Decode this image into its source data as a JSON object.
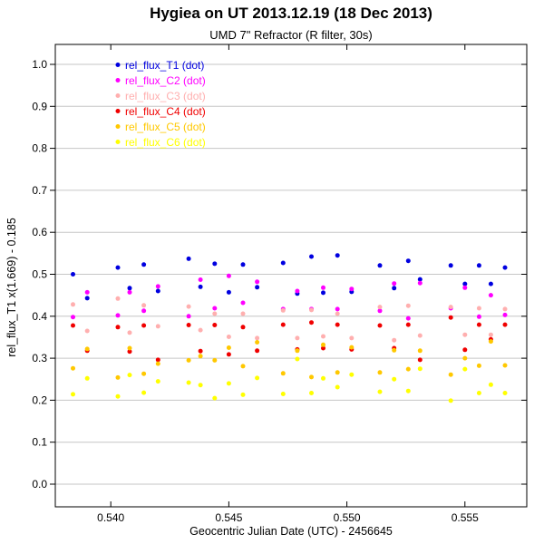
{
  "title": "Hygiea on UT 2013.12.19 (18 Dec 2013)",
  "subtitle": "UMD 7\" Refractor (R filter, 30s)",
  "chart_data": {
    "type": "scatter",
    "title": "Hygiea on UT 2013.12.19 (18 Dec 2013)",
    "subtitle": "UMD 7\" Refractor (R filter, 30s)",
    "xlabel": "Geocentric Julian Date (UTC) - 2456645",
    "ylabel": "rel_flux_T1 x(1.669) - 0.185",
    "xlim": [
      0.53765,
      0.55762
    ],
    "ylim": [
      -0.054,
      1.0475
    ],
    "x_ticks": [
      0.54,
      0.545,
      0.55,
      0.555
    ],
    "x_tick_labels": [
      "0.540",
      "0.545",
      "0.550",
      "0.555"
    ],
    "y_ticks": [
      0.0,
      0.1,
      0.2,
      0.3,
      0.4,
      0.5,
      0.6,
      0.7,
      0.8,
      0.9,
      1.0
    ],
    "y_tick_labels": [
      "0.0",
      "0.1",
      "0.2",
      "0.3",
      "0.4",
      "0.5",
      "0.6",
      "0.7",
      "0.8",
      "0.9",
      "1.0"
    ],
    "grid": "horizontal-only",
    "grid_color": "#c6c6c6",
    "axis_color": "#000000",
    "legend_position": "top-left-inside",
    "marker": "dot",
    "x": [
      0.5384,
      0.539,
      0.5403,
      0.5408,
      0.5414,
      0.542,
      0.5433,
      0.5438,
      0.5444,
      0.545,
      0.5456,
      0.5462,
      0.5473,
      0.5479,
      0.5485,
      0.549,
      0.5496,
      0.5502,
      0.5514,
      0.552,
      0.5526,
      0.5531,
      0.5544,
      0.555,
      0.5556,
      0.5561,
      0.5567
    ],
    "series": [
      {
        "key": "T1",
        "name": "rel_flux_T1 (dot)",
        "color": "#0000e0",
        "values": [
          0.5,
          0.443,
          0.516,
          0.467,
          0.523,
          0.46,
          0.537,
          0.47,
          0.525,
          0.457,
          0.523,
          0.469,
          0.527,
          0.454,
          0.542,
          0.456,
          0.545,
          0.458,
          0.521,
          0.467,
          0.532,
          0.488,
          0.521,
          0.477,
          0.521,
          0.477,
          0.516
        ]
      },
      {
        "key": "C2",
        "name": "rel_flux_C2 (dot)",
        "color": "#ff00ff",
        "values": [
          0.398,
          0.457,
          0.402,
          0.457,
          0.413,
          0.471,
          0.4,
          0.487,
          0.419,
          0.496,
          0.432,
          0.482,
          0.417,
          0.46,
          0.417,
          0.468,
          0.417,
          0.465,
          0.413,
          0.478,
          0.395,
          0.479,
          0.419,
          0.468,
          0.399,
          0.45,
          0.403
        ]
      },
      {
        "key": "C3",
        "name": "rel_flux_C3 (dot)",
        "color": "#ffafaf",
        "values": [
          0.428,
          0.365,
          0.442,
          0.361,
          0.426,
          0.376,
          0.423,
          0.367,
          0.406,
          0.351,
          0.406,
          0.348,
          0.414,
          0.348,
          0.415,
          0.352,
          0.406,
          0.348,
          0.422,
          0.343,
          0.425,
          0.354,
          0.422,
          0.356,
          0.419,
          0.356,
          0.417
        ]
      },
      {
        "key": "C4",
        "name": "rel_flux_C4 (dot)",
        "color": "#f00000",
        "values": [
          0.378,
          0.318,
          0.374,
          0.316,
          0.378,
          0.296,
          0.379,
          0.317,
          0.379,
          0.309,
          0.374,
          0.318,
          0.38,
          0.321,
          0.385,
          0.324,
          0.38,
          0.321,
          0.378,
          0.324,
          0.38,
          0.296,
          0.397,
          0.32,
          0.38,
          0.345,
          0.38
        ]
      },
      {
        "key": "C5",
        "name": "rel_flux_C5 (dot)",
        "color": "#ffc800",
        "values": [
          0.276,
          0.322,
          0.254,
          0.324,
          0.263,
          0.287,
          0.295,
          0.305,
          0.295,
          0.325,
          0.281,
          0.338,
          0.264,
          0.318,
          0.255,
          0.332,
          0.266,
          0.326,
          0.266,
          0.319,
          0.274,
          0.318,
          0.261,
          0.3,
          0.282,
          0.34,
          0.283
        ]
      },
      {
        "key": "C6",
        "name": "rel_flux_C6 (dot)",
        "color": "#ffff00",
        "values": [
          0.214,
          0.252,
          0.209,
          0.26,
          0.218,
          0.245,
          0.242,
          0.236,
          0.205,
          0.24,
          0.213,
          0.253,
          0.215,
          0.298,
          0.217,
          0.252,
          0.231,
          0.261,
          0.22,
          0.25,
          0.222,
          0.275,
          0.199,
          0.274,
          0.217,
          0.237,
          0.217
        ]
      }
    ]
  }
}
